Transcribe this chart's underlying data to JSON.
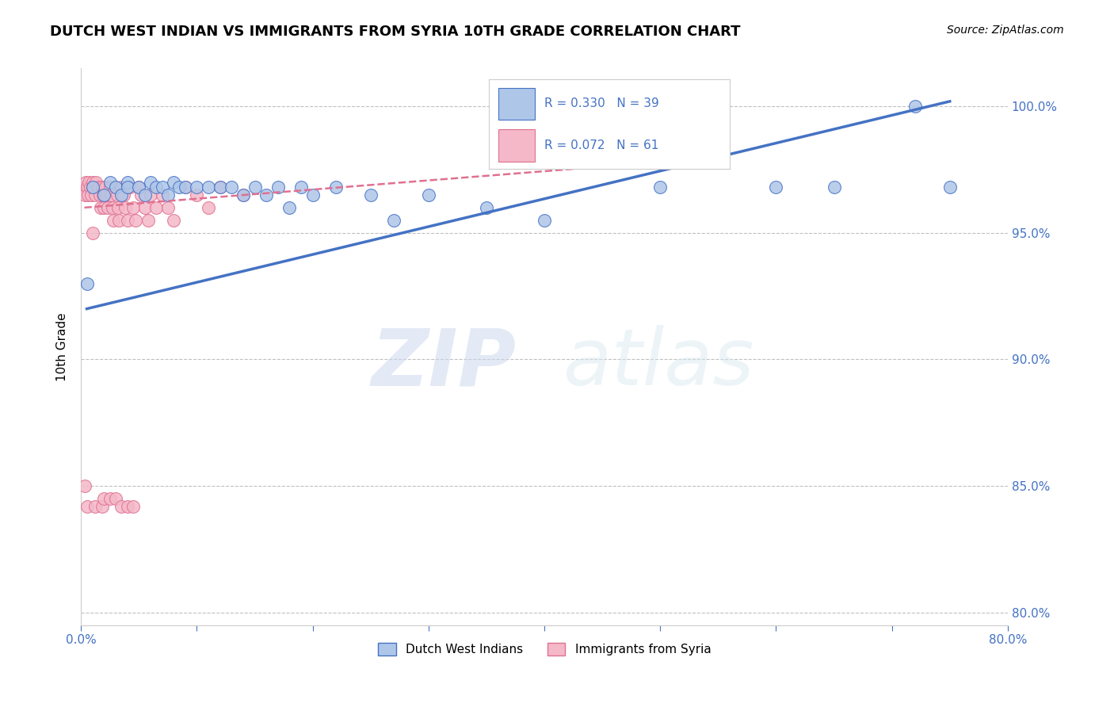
{
  "title": "DUTCH WEST INDIAN VS IMMIGRANTS FROM SYRIA 10TH GRADE CORRELATION CHART",
  "source": "Source: ZipAtlas.com",
  "ylabel": "10th Grade",
  "legend1_text": "R = 0.330   N = 39",
  "legend2_text": "R = 0.072   N = 61",
  "legend_color1": "#aec6e8",
  "legend_color2": "#f4b8c8",
  "dot_color_blue": "#aec6e8",
  "dot_color_pink": "#f4b8c8",
  "line_color_blue": "#4472c4",
  "line_color_pink": "#e07090",
  "watermark_zip": "ZIP",
  "watermark_atlas": "atlas",
  "background_color": "#ffffff",
  "grid_color": "#c0c0c0",
  "text_color_blue": "#4472c4",
  "title_fontsize": 13,
  "axis_label_fontsize": 11,
  "tick_fontsize": 11,
  "xlim": [
    0.0,
    0.8
  ],
  "ylim": [
    0.795,
    1.015
  ],
  "yticks": [
    0.8,
    0.85,
    0.9,
    0.95,
    1.0
  ],
  "ytick_labels": [
    "80.0%",
    "85.0%",
    "90.0%",
    "95.0%",
    "100.0%"
  ],
  "xtick_labels_show": [
    "0.0%",
    "80.0%"
  ],
  "blue_dots_x": [
    0.005,
    0.01,
    0.02,
    0.025,
    0.03,
    0.035,
    0.04,
    0.04,
    0.05,
    0.055,
    0.06,
    0.065,
    0.07,
    0.075,
    0.08,
    0.085,
    0.09,
    0.1,
    0.11,
    0.12,
    0.13,
    0.14,
    0.15,
    0.16,
    0.17,
    0.18,
    0.19,
    0.2,
    0.22,
    0.25,
    0.27,
    0.3,
    0.35,
    0.4,
    0.5,
    0.6,
    0.65,
    0.72,
    0.75
  ],
  "blue_dots_y": [
    0.93,
    0.968,
    0.965,
    0.97,
    0.968,
    0.965,
    0.97,
    0.968,
    0.968,
    0.965,
    0.97,
    0.968,
    0.968,
    0.965,
    0.97,
    0.968,
    0.968,
    0.968,
    0.968,
    0.968,
    0.968,
    0.965,
    0.968,
    0.965,
    0.968,
    0.96,
    0.968,
    0.965,
    0.968,
    0.965,
    0.955,
    0.965,
    0.96,
    0.955,
    0.968,
    0.968,
    0.968,
    1.0,
    0.968
  ],
  "pink_dots_x": [
    0.003,
    0.003,
    0.004,
    0.005,
    0.006,
    0.007,
    0.008,
    0.009,
    0.01,
    0.01,
    0.012,
    0.013,
    0.015,
    0.016,
    0.017,
    0.018,
    0.019,
    0.02,
    0.021,
    0.022,
    0.023,
    0.025,
    0.026,
    0.027,
    0.028,
    0.03,
    0.031,
    0.032,
    0.033,
    0.035,
    0.037,
    0.038,
    0.04,
    0.042,
    0.045,
    0.047,
    0.05,
    0.052,
    0.055,
    0.058,
    0.06,
    0.065,
    0.07,
    0.075,
    0.08,
    0.09,
    0.1,
    0.11,
    0.12,
    0.14,
    0.003,
    0.005,
    0.01,
    0.012,
    0.018,
    0.02,
    0.025,
    0.03,
    0.035,
    0.04,
    0.045
  ],
  "pink_dots_y": [
    0.968,
    0.965,
    0.97,
    0.968,
    0.965,
    0.97,
    0.968,
    0.965,
    0.97,
    0.968,
    0.965,
    0.97,
    0.968,
    0.965,
    0.96,
    0.968,
    0.965,
    0.96,
    0.968,
    0.965,
    0.96,
    0.968,
    0.965,
    0.96,
    0.955,
    0.968,
    0.965,
    0.96,
    0.955,
    0.968,
    0.965,
    0.96,
    0.955,
    0.968,
    0.96,
    0.955,
    0.968,
    0.965,
    0.96,
    0.955,
    0.965,
    0.96,
    0.965,
    0.96,
    0.955,
    0.968,
    0.965,
    0.96,
    0.968,
    0.965,
    0.85,
    0.842,
    0.95,
    0.842,
    0.842,
    0.845,
    0.845,
    0.845,
    0.842,
    0.842,
    0.842
  ],
  "blue_line_x": [
    0.005,
    0.75
  ],
  "blue_line_y": [
    0.92,
    1.002
  ],
  "pink_line_x": [
    0.003,
    0.5
  ],
  "pink_line_y": [
    0.96,
    0.978
  ]
}
